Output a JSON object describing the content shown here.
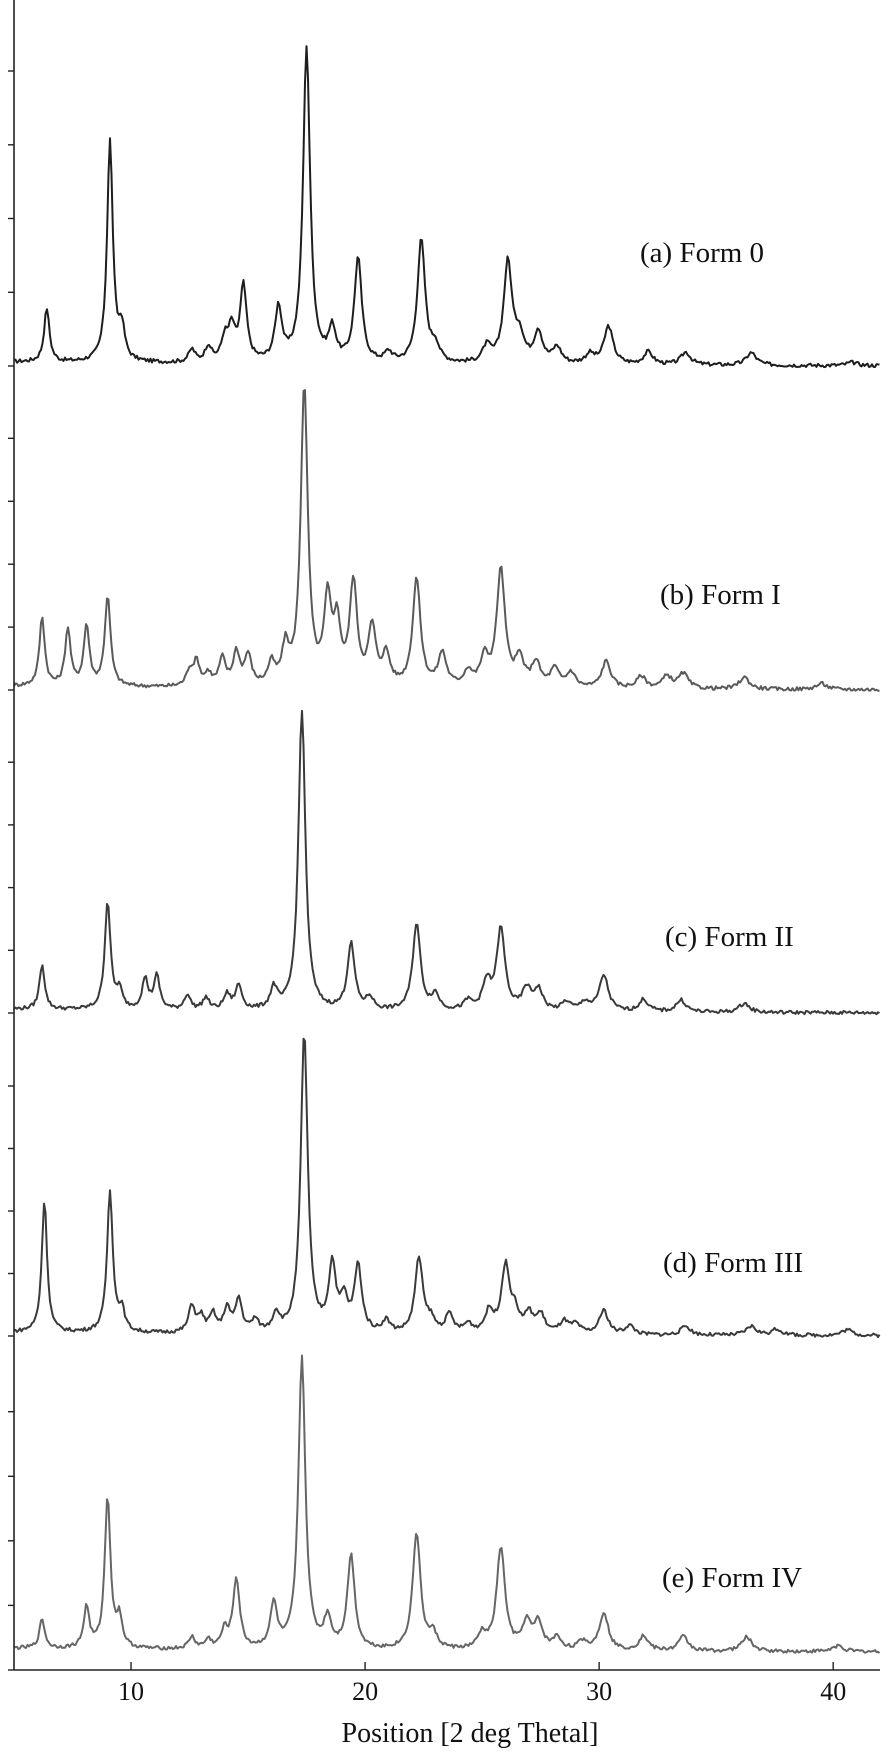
{
  "chart_data": {
    "type": "line",
    "title": "",
    "xlabel": "Position [2 deg Thetal]",
    "ylabel": "",
    "xlim": [
      5,
      42
    ],
    "xticks": [
      10,
      20,
      30,
      40
    ],
    "grid": false,
    "legend": "none",
    "series": [
      {
        "name": "(a) Form 0",
        "color": "#1e1e1e",
        "peaks": [
          [
            6.4,
            0.17
          ],
          [
            9.1,
            0.7
          ],
          [
            9.6,
            0.1
          ],
          [
            12.6,
            0.04
          ],
          [
            13.3,
            0.05
          ],
          [
            14.0,
            0.07
          ],
          [
            14.3,
            0.1
          ],
          [
            14.8,
            0.24
          ],
          [
            16.3,
            0.17
          ],
          [
            17.5,
            1.0
          ],
          [
            18.6,
            0.1
          ],
          [
            19.7,
            0.33
          ],
          [
            21.0,
            0.03
          ],
          [
            22.4,
            0.39
          ],
          [
            23.0,
            0.05
          ],
          [
            25.2,
            0.05
          ],
          [
            26.1,
            0.32
          ],
          [
            26.6,
            0.08
          ],
          [
            27.4,
            0.1
          ],
          [
            28.2,
            0.05
          ],
          [
            29.6,
            0.03
          ],
          [
            30.4,
            0.12
          ],
          [
            32.1,
            0.04
          ],
          [
            33.7,
            0.04
          ],
          [
            36.5,
            0.04
          ],
          [
            40.8,
            0.01
          ]
        ]
      },
      {
        "name": "(b) Form I",
        "color": "#5a5a5a",
        "peaks": [
          [
            6.2,
            0.23
          ],
          [
            7.3,
            0.19
          ],
          [
            8.1,
            0.2
          ],
          [
            9.0,
            0.3
          ],
          [
            12.5,
            0.05
          ],
          [
            12.8,
            0.08
          ],
          [
            13.3,
            0.04
          ],
          [
            13.9,
            0.09
          ],
          [
            14.5,
            0.11
          ],
          [
            15.0,
            0.1
          ],
          [
            16.0,
            0.07
          ],
          [
            16.6,
            0.12
          ],
          [
            17.4,
            1.0
          ],
          [
            18.4,
            0.27
          ],
          [
            18.8,
            0.19
          ],
          [
            19.5,
            0.34
          ],
          [
            20.3,
            0.19
          ],
          [
            20.9,
            0.1
          ],
          [
            22.2,
            0.36
          ],
          [
            23.3,
            0.11
          ],
          [
            24.4,
            0.05
          ],
          [
            25.1,
            0.09
          ],
          [
            25.8,
            0.39
          ],
          [
            26.6,
            0.09
          ],
          [
            27.3,
            0.08
          ],
          [
            28.1,
            0.06
          ],
          [
            28.8,
            0.05
          ],
          [
            30.3,
            0.09
          ],
          [
            31.8,
            0.04
          ],
          [
            32.9,
            0.04
          ],
          [
            33.6,
            0.05
          ],
          [
            36.2,
            0.04
          ],
          [
            39.5,
            0.02
          ]
        ]
      },
      {
        "name": "(c) Form II",
        "color": "#3a3a3a",
        "peaks": [
          [
            6.2,
            0.15
          ],
          [
            9.0,
            0.36
          ],
          [
            9.5,
            0.06
          ],
          [
            10.6,
            0.1
          ],
          [
            11.1,
            0.11
          ],
          [
            12.4,
            0.05
          ],
          [
            13.2,
            0.04
          ],
          [
            14.1,
            0.05
          ],
          [
            14.6,
            0.08
          ],
          [
            16.1,
            0.07
          ],
          [
            17.3,
            1.0
          ],
          [
            19.4,
            0.22
          ],
          [
            20.2,
            0.04
          ],
          [
            22.2,
            0.29
          ],
          [
            23.0,
            0.05
          ],
          [
            24.4,
            0.03
          ],
          [
            25.2,
            0.09
          ],
          [
            25.8,
            0.27
          ],
          [
            26.9,
            0.07
          ],
          [
            27.4,
            0.07
          ],
          [
            28.6,
            0.03
          ],
          [
            29.4,
            0.03
          ],
          [
            30.2,
            0.12
          ],
          [
            31.9,
            0.04
          ],
          [
            33.5,
            0.04
          ],
          [
            36.2,
            0.03
          ]
        ]
      },
      {
        "name": "(d) Form III",
        "color": "#3a3a3a",
        "peaks": [
          [
            6.3,
            0.44
          ],
          [
            9.1,
            0.47
          ],
          [
            9.6,
            0.07
          ],
          [
            12.6,
            0.09
          ],
          [
            13.0,
            0.05
          ],
          [
            13.5,
            0.06
          ],
          [
            14.1,
            0.08
          ],
          [
            14.6,
            0.11
          ],
          [
            15.3,
            0.04
          ],
          [
            16.2,
            0.06
          ],
          [
            17.4,
            1.0
          ],
          [
            18.6,
            0.22
          ],
          [
            19.1,
            0.1
          ],
          [
            19.7,
            0.22
          ],
          [
            20.9,
            0.04
          ],
          [
            22.3,
            0.25
          ],
          [
            22.8,
            0.04
          ],
          [
            23.6,
            0.06
          ],
          [
            24.4,
            0.03
          ],
          [
            25.3,
            0.07
          ],
          [
            26.0,
            0.22
          ],
          [
            26.4,
            0.06
          ],
          [
            27.0,
            0.06
          ],
          [
            27.5,
            0.06
          ],
          [
            28.5,
            0.04
          ],
          [
            29.0,
            0.03
          ],
          [
            30.2,
            0.08
          ],
          [
            31.3,
            0.03
          ],
          [
            33.7,
            0.03
          ],
          [
            36.5,
            0.03
          ],
          [
            37.6,
            0.02
          ],
          [
            40.6,
            0.02
          ]
        ]
      },
      {
        "name": "(e) Form IV",
        "color": "#666666",
        "peaks": [
          [
            6.2,
            0.1
          ],
          [
            8.1,
            0.14
          ],
          [
            9.0,
            0.52
          ],
          [
            9.5,
            0.1
          ],
          [
            12.6,
            0.04
          ],
          [
            13.3,
            0.03
          ],
          [
            14.0,
            0.06
          ],
          [
            14.5,
            0.24
          ],
          [
            16.1,
            0.15
          ],
          [
            17.3,
            1.0
          ],
          [
            18.4,
            0.1
          ],
          [
            19.4,
            0.32
          ],
          [
            22.2,
            0.4
          ],
          [
            22.9,
            0.05
          ],
          [
            25.0,
            0.05
          ],
          [
            25.8,
            0.35
          ],
          [
            26.9,
            0.09
          ],
          [
            27.4,
            0.09
          ],
          [
            28.2,
            0.04
          ],
          [
            29.3,
            0.03
          ],
          [
            30.2,
            0.13
          ],
          [
            31.9,
            0.05
          ],
          [
            33.6,
            0.05
          ],
          [
            36.3,
            0.05
          ],
          [
            40.2,
            0.02
          ]
        ]
      }
    ]
  }
}
